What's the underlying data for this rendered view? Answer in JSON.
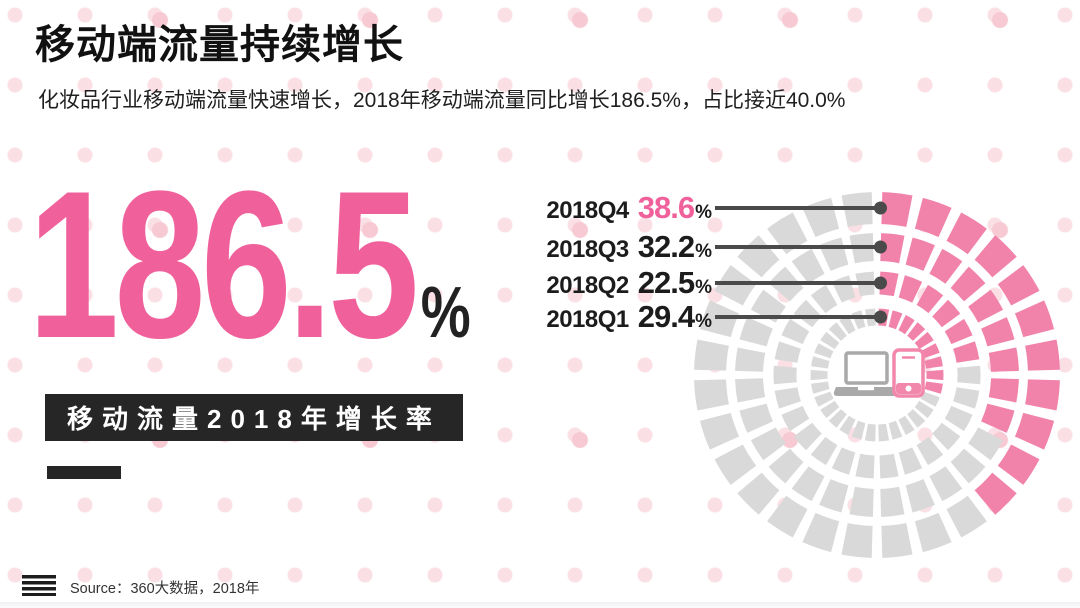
{
  "header": {
    "title": "移动端流量持续增长",
    "subtitle": "化妆品行业移动端流量快速增长，2018年移动端流量同比增长186.5%，占比接近40.0%"
  },
  "highlight": {
    "value": "186.5",
    "unit": "%",
    "tag": "移动流量2018年增长率"
  },
  "footer": {
    "source": "Source：360大数据，2018年"
  },
  "chart_data": {
    "type": "radial-dashed-rings",
    "title": "移动流量2018年增长率",
    "unit": "%",
    "quarters": [
      {
        "label": "2018Q1",
        "value": 29.4,
        "highlight": false
      },
      {
        "label": "2018Q2",
        "value": 22.5,
        "highlight": false
      },
      {
        "label": "2018Q3",
        "value": 32.2,
        "highlight": false
      },
      {
        "label": "2018Q4",
        "value": 38.6,
        "highlight": true
      }
    ],
    "label_order_top_to_bottom": [
      "2018Q4",
      "2018Q3",
      "2018Q2",
      "2018Q1"
    ],
    "start_position": "12-oclock-clockwise",
    "colors": {
      "filled": "#f183ab",
      "empty": "#d9d9d9",
      "highlight_text": "#f0619c",
      "leader": "#4a4a4a",
      "laptop_gray": "#a9a9a9",
      "phone_pink": "#f287ac"
    },
    "layout": {
      "center": [
        877,
        375
      ],
      "rings": [
        {
          "label": "2018Q1",
          "mid_radius": 58,
          "thickness": 17,
          "segments": 30
        },
        {
          "label": "2018Q2",
          "mid_radius": 92,
          "thickness": 23,
          "segments": 26
        },
        {
          "label": "2018Q3",
          "mid_radius": 128,
          "thickness": 28,
          "segments": 28
        },
        {
          "label": "2018Q4",
          "mid_radius": 167,
          "thickness": 32,
          "segments": 28
        }
      ],
      "gap_fraction": 0.26
    },
    "center_icons": [
      "laptop-icon",
      "smartphone-icon"
    ]
  }
}
